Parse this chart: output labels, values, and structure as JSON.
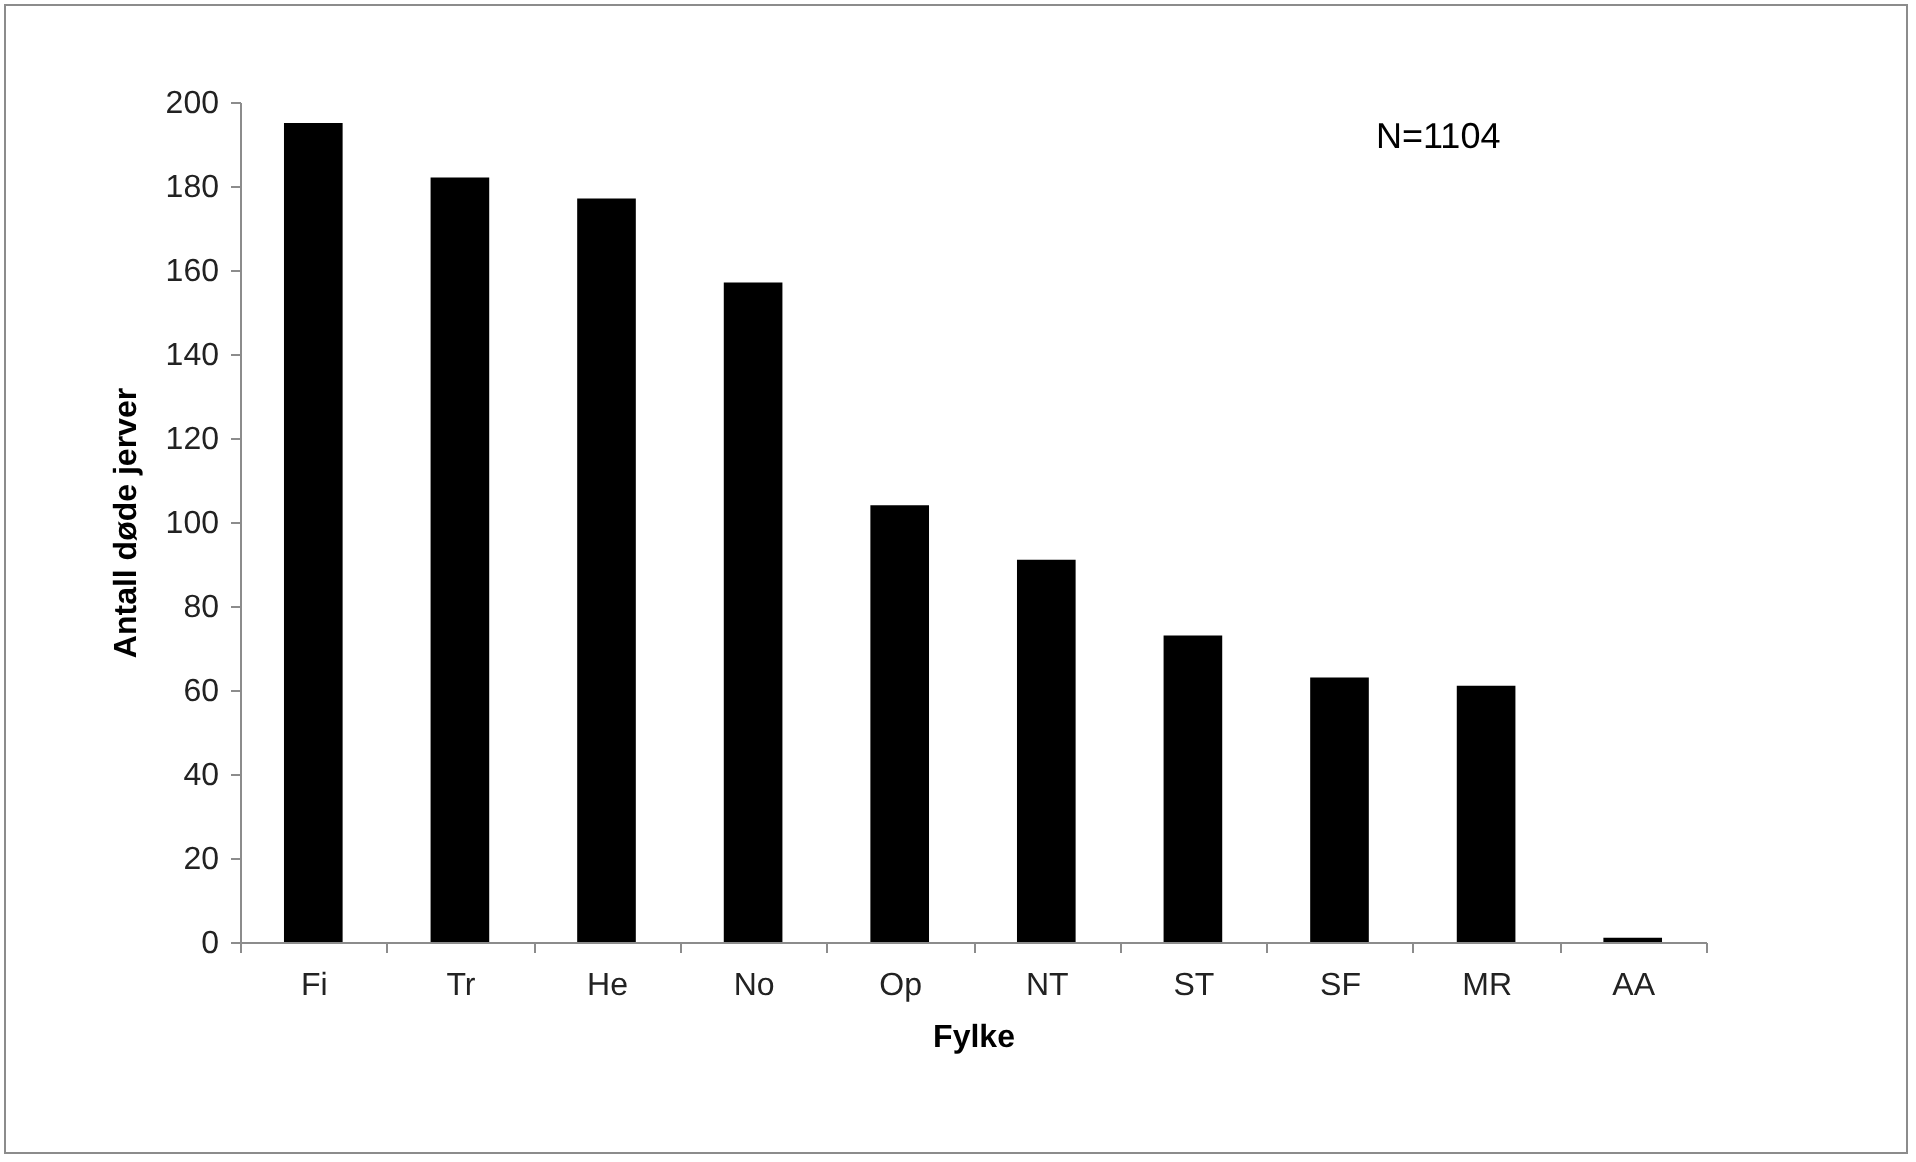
{
  "chart_data": {
    "type": "bar",
    "xlabel": "Fylke",
    "ylabel": "Antall døde jerver",
    "categories": [
      "Fi",
      "Tr",
      "He",
      "No",
      "Op",
      "NT",
      "ST",
      "SF",
      "MR",
      "AA"
    ],
    "values": [
      195,
      182,
      177,
      157,
      104,
      91,
      73,
      63,
      61,
      1
    ],
    "color": "#000000",
    "ylim": [
      0,
      200
    ],
    "yticks": [
      0,
      20,
      40,
      60,
      80,
      100,
      120,
      140,
      160,
      180,
      200
    ],
    "grid": false,
    "annotations": [
      "N=1104"
    ]
  }
}
